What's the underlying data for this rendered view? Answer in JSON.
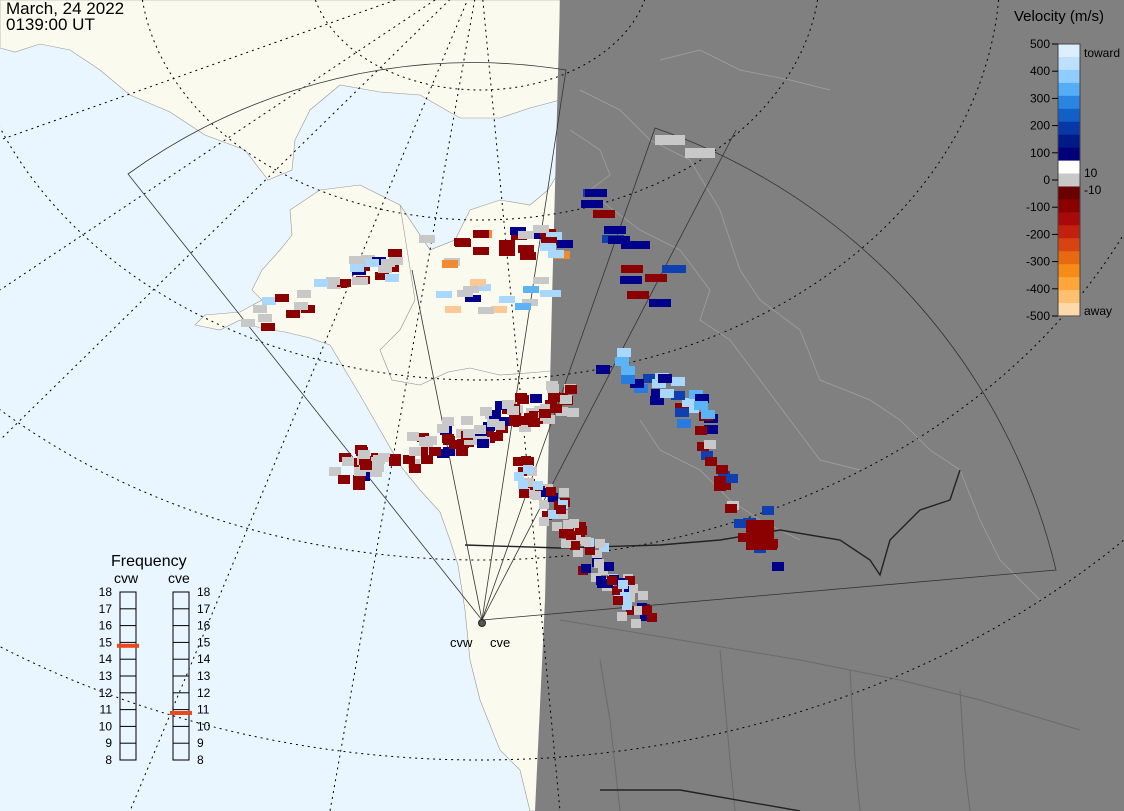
{
  "header": {
    "date": "March, 24 2022",
    "time": "0139:00 UT"
  },
  "velocity_scale": {
    "title": "Velocity (m/s)",
    "ticks": [
      "500",
      "400",
      "300",
      "200",
      "100",
      "0",
      "-100",
      "-200",
      "-300",
      "-400",
      "-500"
    ],
    "inner_labels": [
      "10",
      "-10"
    ],
    "end_labels": {
      "top": "toward",
      "bottom": "away"
    }
  },
  "frequency_panel": {
    "title": "Frequency",
    "radars": [
      {
        "name": "cvw",
        "frequency": 14.8
      },
      {
        "name": "cve",
        "frequency": 10.8
      }
    ],
    "ticks": [
      "18",
      "17",
      "16",
      "15",
      "14",
      "13",
      "12",
      "11",
      "10",
      "9",
      "8"
    ]
  },
  "radar_sites": [
    {
      "name": "cvw"
    },
    {
      "name": "cve"
    }
  ],
  "colors": {
    "ocean": "#e9f5ff",
    "land": "#fafaee",
    "night": "#808080",
    "ground_scatter": "#c8c8c8",
    "frequency_marker": "#e8491d",
    "away_strong": "#8b0000",
    "toward_strong": "#00008b"
  }
}
